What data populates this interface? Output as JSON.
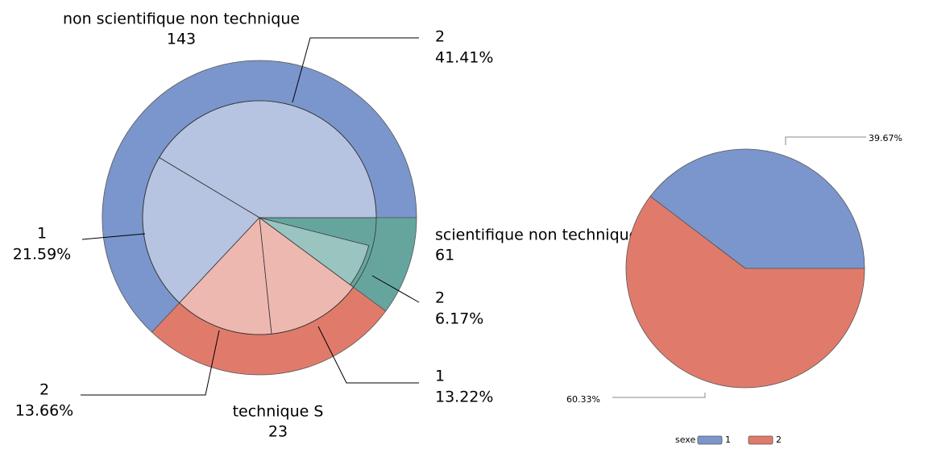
{
  "chart_data": [
    {
      "type": "nested-pie",
      "categories": [
        "non scientifique non technique",
        "scientifique non technique",
        "technique S"
      ],
      "values": [
        143,
        61,
        23
      ],
      "colors": [
        "#7b96cc",
        "#e07b6c",
        "#66a59e"
      ],
      "inner_colors": [
        "#b6c4e2",
        "#edb8b0",
        "#99c4c0"
      ],
      "inner": [
        {
          "categories": [
            "2",
            "1"
          ],
          "values": [
            41.41,
            21.59
          ],
          "value_labels": [
            "41.41%",
            "21.59%"
          ]
        },
        {
          "categories": [
            "2",
            "1"
          ],
          "values": [
            13.66,
            13.22
          ],
          "value_labels": [
            "13.66%",
            "13.22%"
          ]
        },
        {
          "categories": [
            "2"
          ],
          "values": [
            6.17
          ],
          "value_labels": [
            "6.17%"
          ]
        }
      ]
    },
    {
      "type": "pie",
      "categories": [
        "1",
        "2"
      ],
      "values": [
        39.67,
        60.33
      ],
      "value_labels": [
        "39.67%",
        "60.33%"
      ],
      "colors": [
        "#7b96cc",
        "#e07b6c"
      ],
      "legend_title": "sexe"
    }
  ]
}
